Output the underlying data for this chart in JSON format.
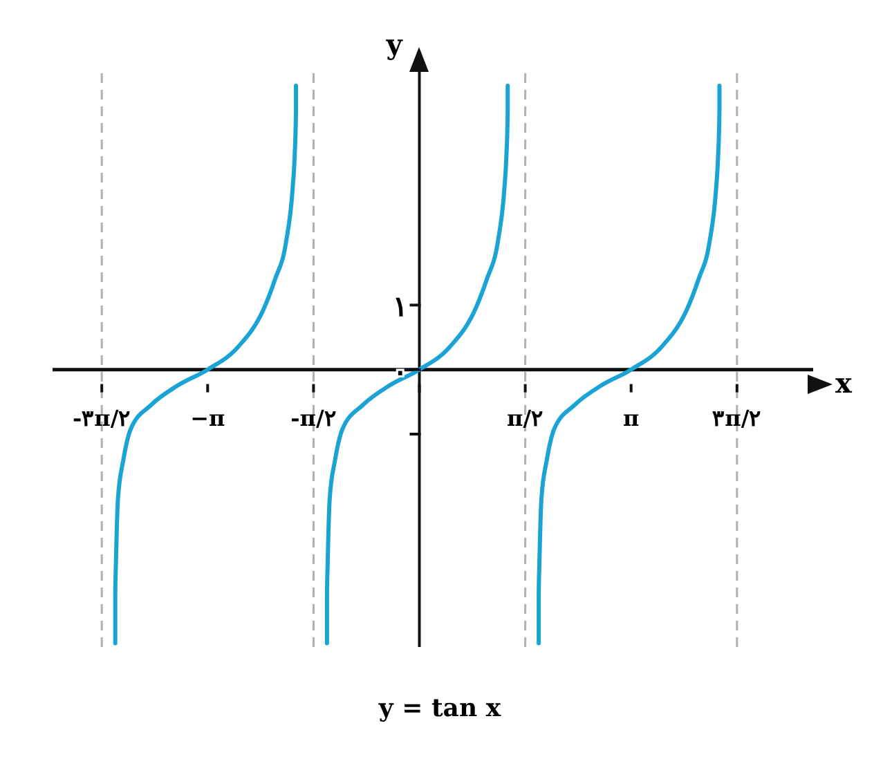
{
  "chart_data": {
    "type": "line",
    "xlabel": "x",
    "ylabel": "y",
    "annotations": [
      "y = tan x"
    ],
    "xlim": [
      -5.44,
      5.84
    ],
    "ylim": [
      -4.3,
      4.7
    ],
    "xticks": [
      {
        "value": -4.71,
        "label": "-۳π/۲"
      },
      {
        "value": -3.14,
        "label": "−π"
      },
      {
        "value": -1.57,
        "label": "-π/۲"
      },
      {
        "value": 0,
        "label": null
      },
      {
        "value": 1.57,
        "label": "π/۲"
      },
      {
        "value": 3.14,
        "label": "π"
      },
      {
        "value": 4.71,
        "label": "۳π/۲"
      }
    ],
    "yticks": [
      {
        "value": -1,
        "label": null
      },
      {
        "value": 0,
        "label": "۰"
      },
      {
        "value": 1,
        "label": "۱"
      }
    ],
    "line_style": "solid",
    "ref_lines": [
      {
        "axis": "x",
        "value": -4.71,
        "color": "#b0b0b0",
        "line_style": "dashed"
      },
      {
        "axis": "x",
        "value": -1.57,
        "color": "#b0b0b0",
        "line_style": "dashed"
      },
      {
        "axis": "x",
        "value": 1.57,
        "color": "#b0b0b0",
        "line_style": "dashed"
      },
      {
        "axis": "x",
        "value": 4.71,
        "color": "#b0b0b0",
        "line_style": "dashed"
      }
    ],
    "series": [
      {
        "color": "#1ba3d6",
        "x": [
          -4.51,
          -4.51,
          -4.5,
          -4.47,
          -4.39,
          -4.28,
          -3.98,
          -3.59,
          -3.14,
          -2.69,
          -2.3,
          -2.14,
          -1.98,
          -1.88,
          -1.85,
          -1.83,
          -1.83
        ],
        "values": [
          -4.24,
          -3.5,
          -3.0,
          -2.0,
          -1.4,
          -0.92,
          -0.55,
          -0.25,
          0,
          0.35,
          0.96,
          1.4,
          1.96,
          2.8,
          3.3,
          4.0,
          4.4
        ]
      },
      {
        "color": "#1ba3d6",
        "x": [
          -1.37,
          -1.37,
          -1.36,
          -1.33,
          -1.25,
          -1.14,
          -0.84,
          -0.45,
          0,
          0.45,
          0.84,
          1.0,
          1.16,
          1.26,
          1.29,
          1.31,
          1.31
        ],
        "values": [
          -4.24,
          -3.5,
          -3.0,
          -2.0,
          -1.4,
          -0.92,
          -0.55,
          -0.25,
          0,
          0.35,
          0.96,
          1.4,
          1.96,
          2.8,
          3.3,
          4.0,
          4.4
        ]
      },
      {
        "color": "#1ba3d6",
        "x": [
          1.77,
          1.77,
          1.78,
          1.81,
          1.89,
          2.0,
          2.3,
          2.69,
          3.14,
          3.59,
          3.98,
          4.14,
          4.3,
          4.4,
          4.43,
          4.45,
          4.45
        ],
        "values": [
          -4.24,
          -3.5,
          -3.0,
          -2.0,
          -1.4,
          -0.92,
          -0.55,
          -0.25,
          0,
          0.35,
          0.96,
          1.4,
          1.96,
          2.8,
          3.3,
          4.0,
          4.4
        ]
      }
    ]
  }
}
